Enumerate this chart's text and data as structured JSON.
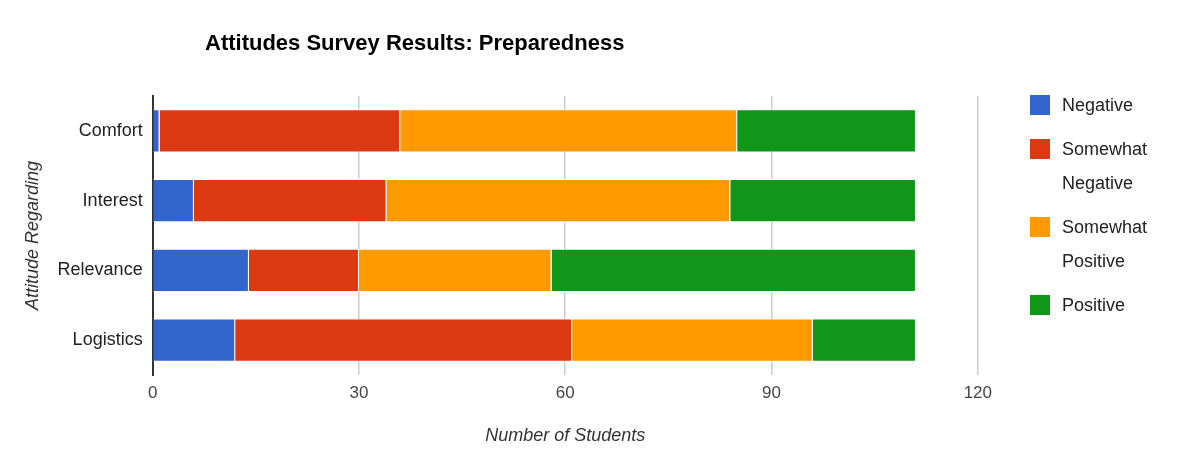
{
  "chart_data": {
    "type": "bar",
    "title": "Attitudes Survey Results: Preparedness",
    "xlabel": "Number of Students",
    "ylabel": "Attitude Regarding",
    "orientation": "horizontal",
    "stacked": true,
    "categories": [
      "Comfort",
      "Interest",
      "Relevance",
      "Logistics"
    ],
    "series": [
      {
        "name": "Negative",
        "color": "#3366cc",
        "values": [
          1,
          6,
          14,
          12
        ]
      },
      {
        "name": "Somewhat Negative",
        "color": "#dc3912",
        "values": [
          35,
          28,
          16,
          49
        ]
      },
      {
        "name": "Somewhat Positive",
        "color": "#ff9900",
        "values": [
          49,
          50,
          28,
          35
        ]
      },
      {
        "name": "Positive",
        "color": "#109618",
        "values": [
          26,
          27,
          53,
          15
        ]
      }
    ],
    "xlim": [
      0,
      120
    ],
    "xticks": [
      0,
      30,
      60,
      90,
      120
    ],
    "grid": "x",
    "legend": "right"
  }
}
